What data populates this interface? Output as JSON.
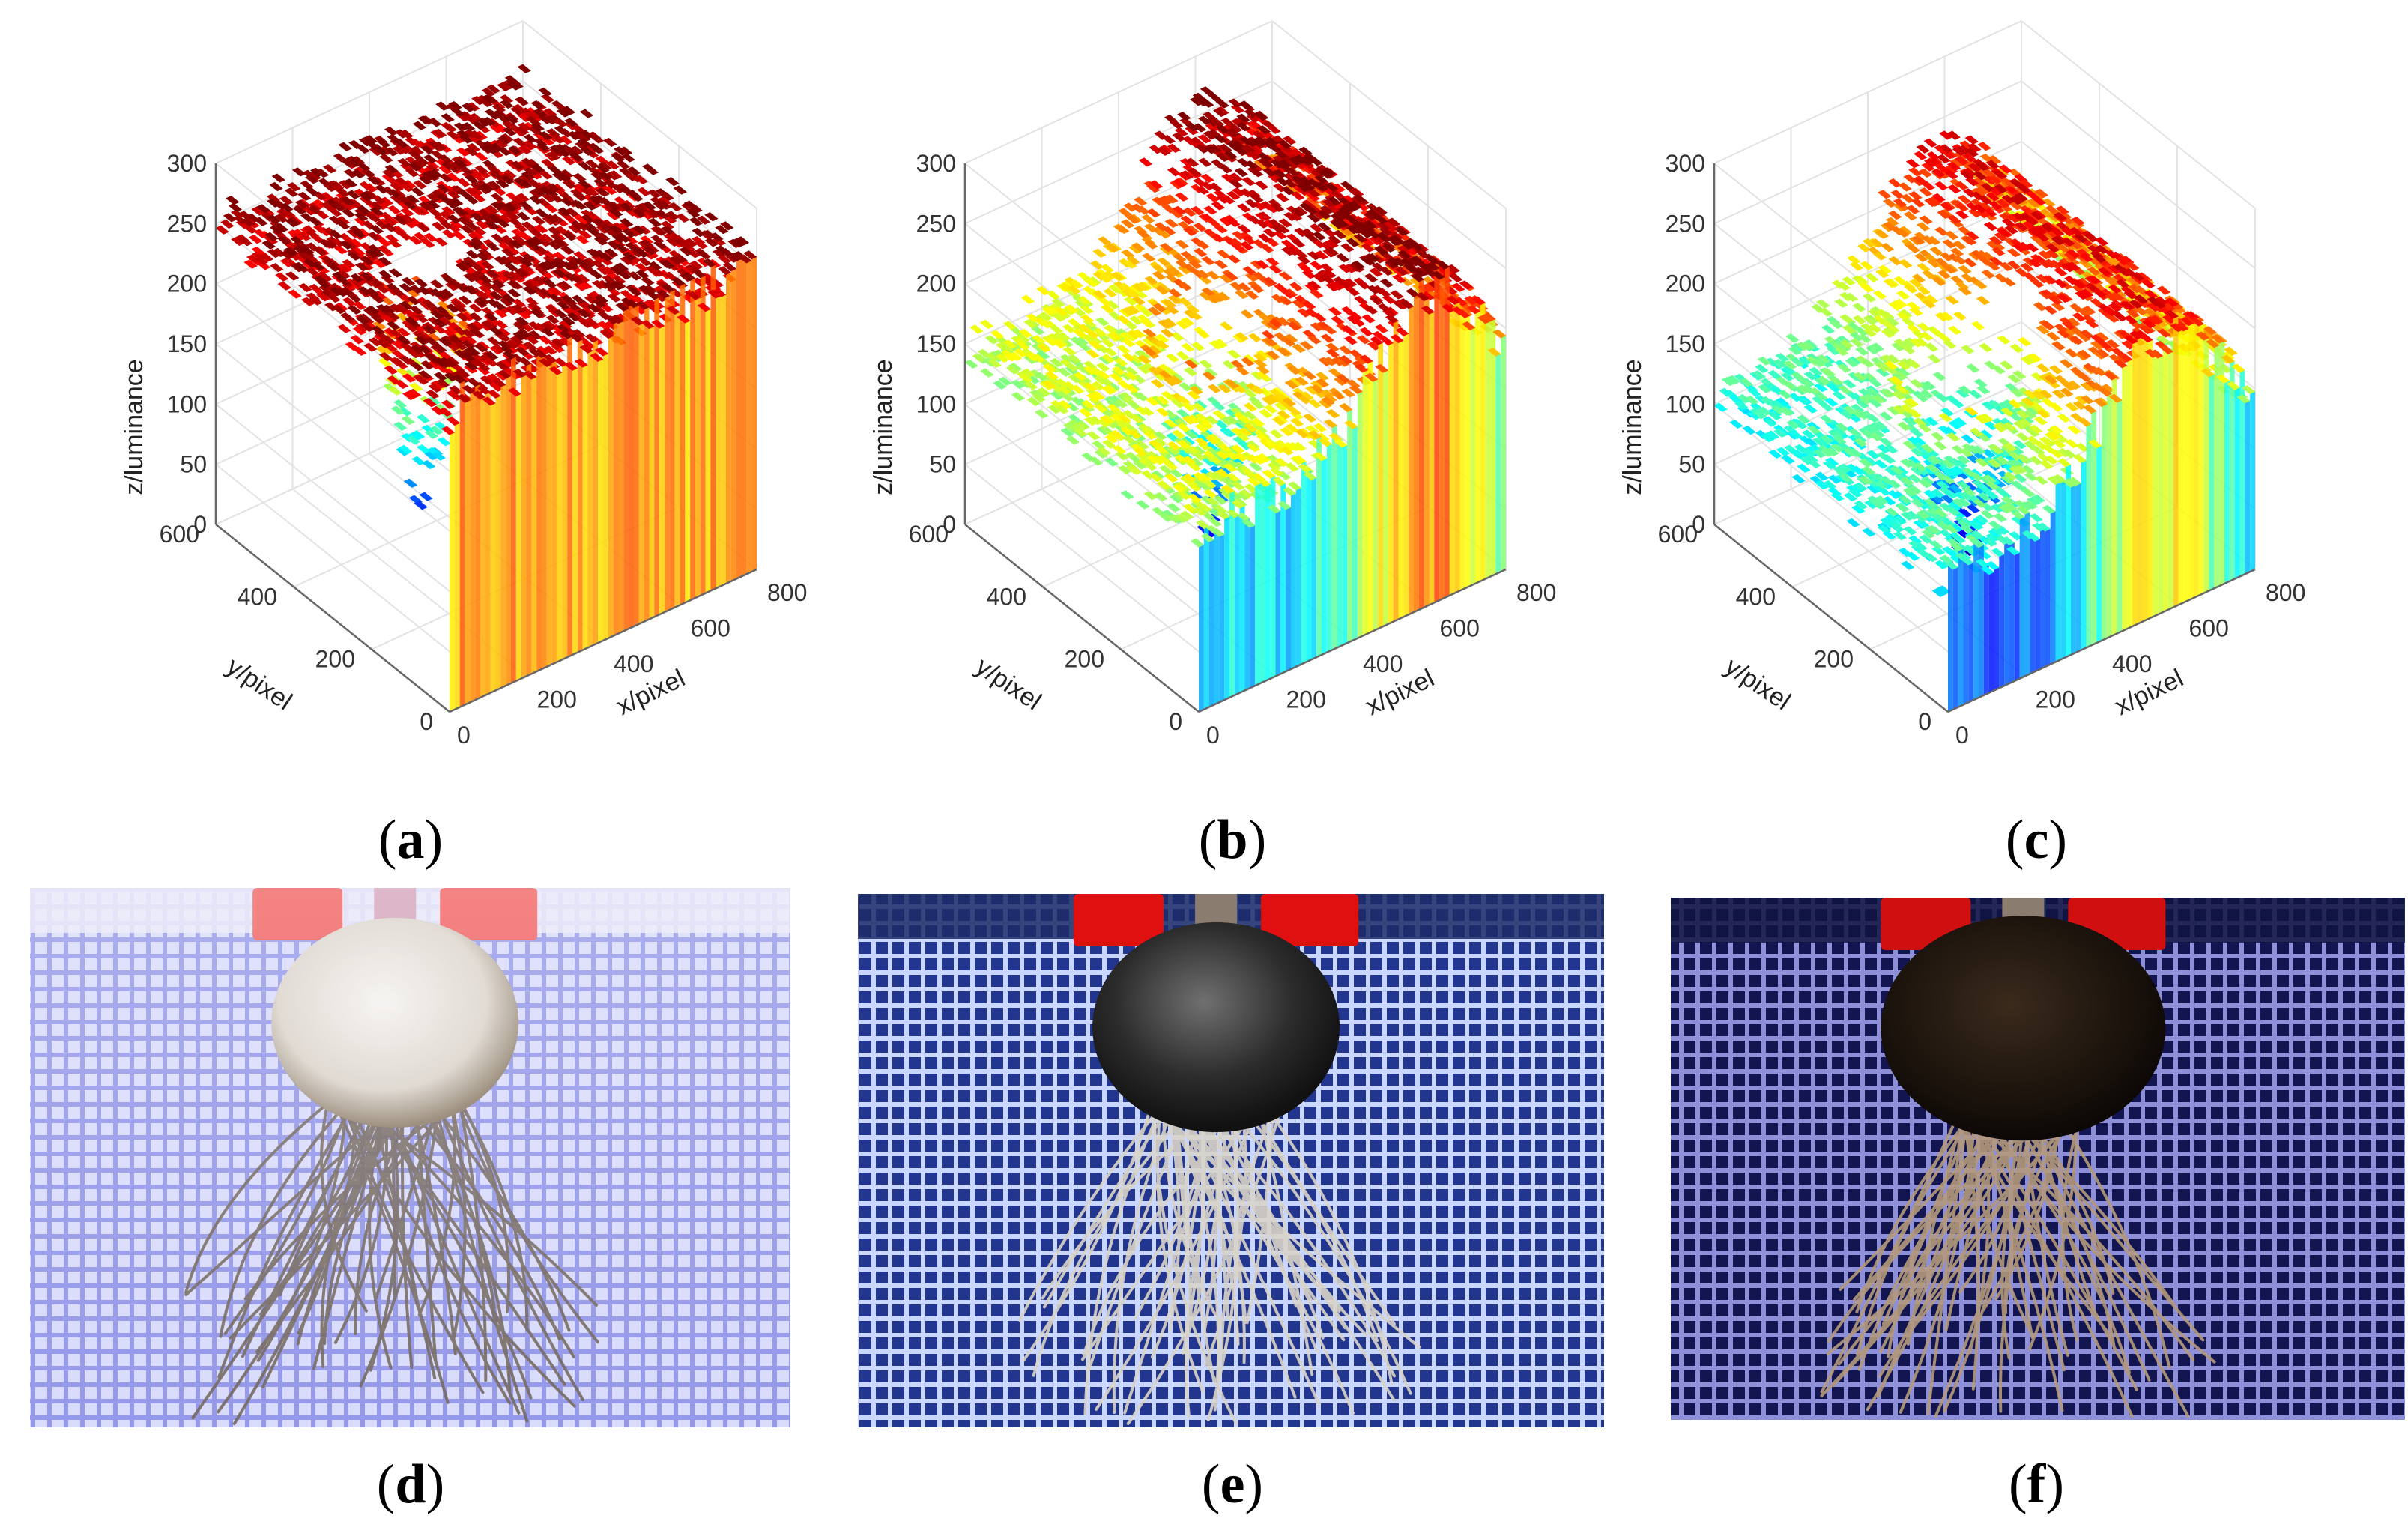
{
  "figure": {
    "panels": [
      {
        "id": "a",
        "caption_open": "(",
        "caption_letter": "a",
        "caption_close": ")",
        "kind": "surface",
        "surface": "saturated"
      },
      {
        "id": "b",
        "caption_open": "(",
        "caption_letter": "b",
        "caption_close": ")",
        "kind": "surface",
        "surface": "moderate"
      },
      {
        "id": "c",
        "caption_open": "(",
        "caption_letter": "c",
        "caption_close": ")",
        "kind": "surface",
        "surface": "dark"
      },
      {
        "id": "d",
        "caption_open": "(",
        "caption_letter": "d",
        "caption_close": ")",
        "kind": "photo",
        "exposure": "overexposed"
      },
      {
        "id": "e",
        "caption_open": "(",
        "caption_letter": "e",
        "caption_close": ")",
        "kind": "photo",
        "exposure": "normal"
      },
      {
        "id": "f",
        "caption_open": "(",
        "caption_letter": "f",
        "caption_close": ")",
        "kind": "photo",
        "exposure": "underexposed"
      }
    ]
  },
  "chart_data": [
    {
      "type": "surface",
      "panel": "a",
      "title": "",
      "xlabel": "x/pixel",
      "ylabel": "y/pixel",
      "zlabel": "z/luminance",
      "x_ticks": [
        "0",
        "200",
        "400",
        "600",
        "800"
      ],
      "y_ticks": [
        "0",
        "200",
        "400",
        "600"
      ],
      "z_ticks": [
        "0",
        "50",
        "100",
        "150",
        "200",
        "250",
        "300"
      ],
      "xlim": [
        0,
        800
      ],
      "ylim": [
        0,
        600
      ],
      "zlim": [
        0,
        300
      ],
      "colormap": "jet",
      "grid": true,
      "profile": {
        "x": [
          0,
          200,
          400,
          600,
          800
        ],
        "plateau_luminance": 255,
        "min_luminance": 30,
        "max_luminance": 260
      }
    },
    {
      "type": "surface",
      "panel": "b",
      "title": "",
      "xlabel": "x/pixel",
      "ylabel": "y/pixel",
      "zlabel": "z/luminance",
      "x_ticks": [
        "0",
        "200",
        "400",
        "600",
        "800"
      ],
      "y_ticks": [
        "0",
        "200",
        "400",
        "600"
      ],
      "z_ticks": [
        "0",
        "50",
        "100",
        "150",
        "200",
        "250",
        "300"
      ],
      "xlim": [
        0,
        800
      ],
      "ylim": [
        0,
        600
      ],
      "zlim": [
        0,
        300
      ],
      "colormap": "jet",
      "grid": true,
      "profile": {
        "x": [
          0,
          200,
          400,
          600,
          800
        ],
        "plateau_luminance": 150,
        "min_luminance": 0,
        "max_luminance": 265
      }
    },
    {
      "type": "surface",
      "panel": "c",
      "title": "",
      "xlabel": "x/pixel",
      "ylabel": "y/pixel",
      "zlabel": "z/luminance",
      "x_ticks": [
        "0",
        "200",
        "400",
        "600",
        "800"
      ],
      "y_ticks": [
        "0",
        "200",
        "400",
        "600"
      ],
      "z_ticks": [
        "0",
        "50",
        "100",
        "150",
        "200",
        "250",
        "300"
      ],
      "xlim": [
        0,
        800
      ],
      "ylim": [
        0,
        600
      ],
      "zlim": [
        0,
        300
      ],
      "colormap": "jet",
      "grid": true,
      "profile": {
        "x": [
          0,
          200,
          400,
          600,
          800
        ],
        "plateau_luminance": 120,
        "min_luminance": 0,
        "max_luminance": 230
      }
    }
  ]
}
